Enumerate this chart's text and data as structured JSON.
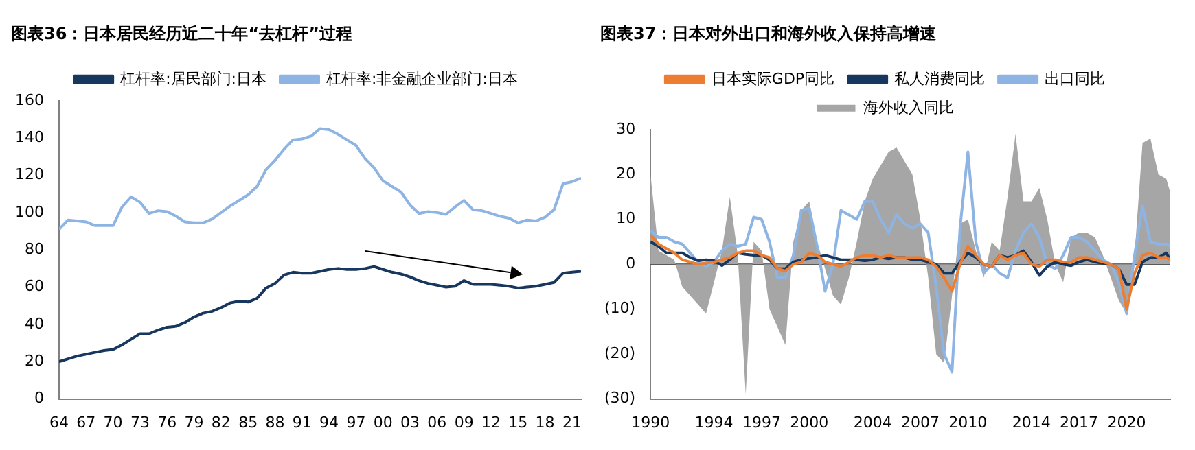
{
  "chart_data": [
    {
      "type": "line",
      "title": "图表36：日本居民经历近二十年“去杠杆”过程",
      "legend": "top",
      "grid": false,
      "marker": "none",
      "line_style": "solid",
      "x": [
        1964,
        1965,
        1966,
        1967,
        1968,
        1969,
        1970,
        1971,
        1972,
        1973,
        1974,
        1975,
        1976,
        1977,
        1978,
        1979,
        1980,
        1981,
        1982,
        1983,
        1984,
        1985,
        1986,
        1987,
        1988,
        1989,
        1990,
        1991,
        1992,
        1993,
        1994,
        1995,
        1996,
        1997,
        1998,
        1999,
        2000,
        2001,
        2002,
        2003,
        2004,
        2005,
        2006,
        2007,
        2008,
        2009,
        2010,
        2011,
        2012,
        2013,
        2014,
        2015,
        2016,
        2017,
        2018,
        2019,
        2020,
        2021,
        2022
      ],
      "xlim": [
        1964,
        2022
      ],
      "xticks": [
        {
          "value": 1964,
          "label": "64"
        },
        {
          "value": 1967,
          "label": "67"
        },
        {
          "value": 1970,
          "label": "70"
        },
        {
          "value": 1973,
          "label": "73"
        },
        {
          "value": 1976,
          "label": "76"
        },
        {
          "value": 1979,
          "label": "79"
        },
        {
          "value": 1982,
          "label": "82"
        },
        {
          "value": 1985,
          "label": "85"
        },
        {
          "value": 1988,
          "label": "88"
        },
        {
          "value": 1991,
          "label": "91"
        },
        {
          "value": 1994,
          "label": "94"
        },
        {
          "value": 1997,
          "label": "97"
        },
        {
          "value": 2000,
          "label": "00"
        },
        {
          "value": 2003,
          "label": "03"
        },
        {
          "value": 2006,
          "label": "06"
        },
        {
          "value": 2009,
          "label": "09"
        },
        {
          "value": 2012,
          "label": "12"
        },
        {
          "value": 2015,
          "label": "15"
        },
        {
          "value": 2018,
          "label": "18"
        },
        {
          "value": 2021,
          "label": "21"
        }
      ],
      "ylim": [
        0,
        160
      ],
      "yticks": [
        0,
        20,
        40,
        60,
        80,
        100,
        120,
        140,
        160
      ],
      "series": [
        {
          "name": "杠杆率:居民部门:日本",
          "color": "#17375e",
          "values": [
            20,
            21.5,
            23,
            24,
            25,
            26,
            26.5,
            29,
            32,
            35,
            35,
            37,
            38.5,
            39,
            41,
            44,
            46,
            47,
            49,
            51.5,
            52.5,
            52,
            54,
            59.5,
            62,
            66.5,
            68,
            67.5,
            67.5,
            68.5,
            69.5,
            70,
            69.5,
            69.5,
            70,
            71,
            69.5,
            68,
            67,
            65.5,
            63.5,
            62,
            61,
            60,
            60.5,
            63.5,
            61.5,
            61.5,
            61.5,
            61,
            60.5,
            59.5,
            60,
            60.5,
            61.5,
            62.5,
            67.5,
            68,
            68.5
          ]
        },
        {
          "name": "杠杆率:非金融企业部门:日本",
          "color": "#8db4e2",
          "values": [
            91,
            96,
            95.5,
            95,
            93,
            93,
            93,
            103,
            108.5,
            105.5,
            99.5,
            101,
            100.5,
            98,
            95,
            94.5,
            94.5,
            96.5,
            100,
            103.5,
            106.5,
            109.5,
            114,
            123,
            128,
            134,
            139,
            139.5,
            141,
            145,
            144.5,
            142,
            139,
            136,
            129,
            124,
            117,
            114,
            111,
            104,
            99.5,
            100.5,
            100,
            99,
            103,
            106.5,
            101.5,
            101,
            99.5,
            98,
            97,
            94.5,
            96,
            95.5,
            97.5,
            101.5,
            115.5,
            116.5,
            118.5
          ]
        }
      ]
    },
    {
      "type": "line",
      "title": "图表37：日本对外出口和海外收入保持高增速",
      "legend": "top",
      "grid": false,
      "marker": "none",
      "line_style": "solid",
      "x": [
        1990,
        1990.5,
        1991,
        1991.5,
        1992,
        1992.5,
        1993,
        1993.5,
        1994,
        1994.5,
        1995,
        1995.5,
        1996,
        1996.5,
        1997,
        1997.5,
        1998,
        1998.5,
        1999,
        1999.5,
        2000,
        2000.5,
        2001,
        2001.5,
        2002,
        2002.5,
        2003,
        2003.5,
        2004,
        2004.5,
        2005,
        2005.5,
        2006,
        2006.5,
        2007,
        2007.5,
        2008,
        2008.5,
        2009,
        2009.5,
        2010,
        2010.5,
        2011,
        2011.5,
        2012,
        2012.5,
        2013,
        2013.5,
        2014,
        2014.5,
        2015,
        2015.5,
        2016,
        2016.5,
        2017,
        2017.5,
        2018,
        2018.5,
        2019,
        2019.5,
        2020,
        2020.5,
        2021,
        2021.5,
        2022,
        2022.5,
        2022.75
      ],
      "xlim": [
        1990,
        2022.75
      ],
      "xticks": [
        1990,
        1994,
        1997,
        2000,
        2004,
        2007,
        2010,
        2014,
        2017,
        2020
      ],
      "ylim": [
        -30,
        30
      ],
      "yticks": [
        {
          "value": -30,
          "label": "(30)"
        },
        {
          "value": -20,
          "label": "(20)"
        },
        {
          "value": -10,
          "label": "(10)"
        },
        0,
        10,
        20,
        30
      ],
      "ref_lines": [
        {
          "axis": "y",
          "value": 0,
          "color": "#404040"
        }
      ],
      "series": [
        {
          "name": "海外收入同比",
          "type": "area",
          "color": "#a6a6a6",
          "values": [
            20,
            3,
            2,
            1,
            -5,
            -7,
            -9,
            -11,
            -4,
            3,
            15,
            2,
            -29,
            5,
            3,
            -10,
            -14,
            -18,
            5,
            12,
            14,
            5,
            -1,
            -7,
            -9,
            -3,
            5,
            14,
            19,
            22,
            25,
            26,
            23,
            20,
            10,
            -3,
            -20,
            -22,
            -7,
            9,
            10,
            3,
            -3,
            5,
            3,
            15,
            29,
            14,
            14,
            17,
            10,
            0,
            -4,
            6,
            7,
            7,
            6,
            2,
            -3,
            -8,
            -11,
            2,
            27,
            28,
            20,
            19,
            16
          ]
        },
        {
          "name": "日本实际GDP同比",
          "color": "#ed7d31",
          "values": [
            6.5,
            4.5,
            3.5,
            2.5,
            1,
            0.5,
            0,
            0.3,
            0.5,
            1,
            1.5,
            2.5,
            3,
            3,
            2,
            1.5,
            -1,
            -1.5,
            0,
            0.5,
            2.5,
            2,
            0.5,
            0,
            -0.5,
            0.5,
            1.5,
            2,
            2,
            1.5,
            2,
            1.5,
            1.5,
            1.5,
            1.5,
            1,
            -0.5,
            -3,
            -6,
            0,
            4,
            2,
            0,
            -0.5,
            2,
            1,
            2,
            2.5,
            0,
            -0.5,
            1,
            1,
            0.5,
            0.5,
            1.5,
            1.5,
            1,
            0.5,
            0,
            -1,
            -10,
            -2,
            2,
            2.5,
            1.5,
            1.5,
            1
          ]
        },
        {
          "name": "私人消费同比",
          "color": "#17375e",
          "values": [
            5,
            4,
            2.5,
            2.5,
            2.5,
            1.5,
            0.8,
            1,
            0.8,
            -0.3,
            1,
            2.5,
            2.2,
            2,
            2,
            1,
            -1,
            -1,
            0.5,
            1,
            1.3,
            1.5,
            2,
            1.5,
            1,
            1,
            1,
            0.8,
            1,
            1.5,
            1.2,
            1.5,
            1.5,
            1,
            1,
            0.5,
            0,
            -2,
            -2,
            0.5,
            2.5,
            1.5,
            0,
            -0.5,
            2,
            1.5,
            2,
            3,
            0.5,
            -2.5,
            -0.5,
            0.5,
            0,
            -0.3,
            0.5,
            1,
            0.5,
            0.2,
            0,
            -1,
            -4.5,
            -4.5,
            0.5,
            1.5,
            1.5,
            2.5,
            1
          ]
        },
        {
          "name": "出口同比",
          "color": "#8db4e2",
          "values": [
            7.5,
            6,
            6,
            5,
            4.5,
            2.5,
            0.5,
            -0.5,
            0.5,
            3,
            4.5,
            4,
            4.5,
            10.5,
            10,
            5,
            -3,
            -3,
            2,
            12,
            12.5,
            4,
            -6,
            0,
            12,
            11,
            10,
            14,
            14,
            10,
            7,
            11,
            9,
            8,
            9,
            7,
            -5,
            -20,
            -24,
            8,
            25,
            5,
            -2,
            0,
            -2,
            -3,
            3,
            7,
            9,
            6,
            0,
            -1,
            2,
            6,
            6,
            5,
            3,
            1,
            0,
            -4,
            -11,
            2,
            13,
            5,
            4.5,
            4.5,
            4
          ]
        }
      ]
    }
  ]
}
